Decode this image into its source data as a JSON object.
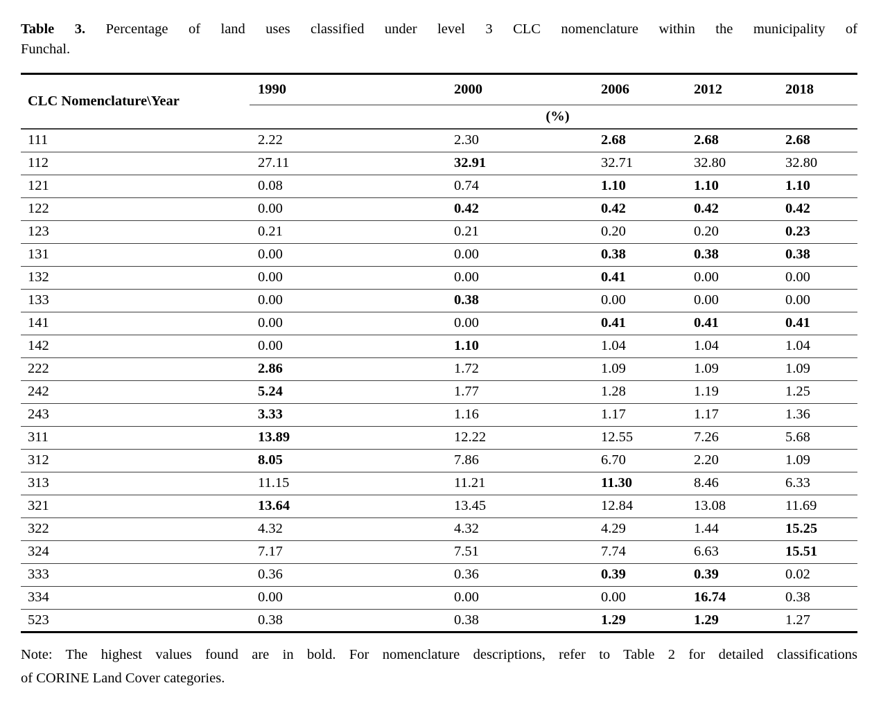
{
  "caption": {
    "label": "Table 3.",
    "line1_rest": "Percentage of land uses classified under level 3 CLC nomenclature within the municipality of",
    "line2": "Funchal."
  },
  "table": {
    "corner_header": "CLC Nomenclature\\Year",
    "years": [
      "1990",
      "2000",
      "2006",
      "2012",
      "2018"
    ],
    "unit_header": "(%)",
    "rows": [
      {
        "code": "111",
        "values": [
          "2.22",
          "2.30",
          "2.68",
          "2.68",
          "2.68"
        ],
        "bold": [
          false,
          false,
          true,
          true,
          true
        ]
      },
      {
        "code": "112",
        "values": [
          "27.11",
          "32.91",
          "32.71",
          "32.80",
          "32.80"
        ],
        "bold": [
          false,
          true,
          false,
          false,
          false
        ]
      },
      {
        "code": "121",
        "values": [
          "0.08",
          "0.74",
          "1.10",
          "1.10",
          "1.10"
        ],
        "bold": [
          false,
          false,
          true,
          true,
          true
        ]
      },
      {
        "code": "122",
        "values": [
          "0.00",
          "0.42",
          "0.42",
          "0.42",
          "0.42"
        ],
        "bold": [
          false,
          true,
          true,
          true,
          true
        ]
      },
      {
        "code": "123",
        "values": [
          "0.21",
          "0.21",
          "0.20",
          "0.20",
          "0.23"
        ],
        "bold": [
          false,
          false,
          false,
          false,
          true
        ]
      },
      {
        "code": "131",
        "values": [
          "0.00",
          "0.00",
          "0.38",
          "0.38",
          "0.38"
        ],
        "bold": [
          false,
          false,
          true,
          true,
          true
        ]
      },
      {
        "code": "132",
        "values": [
          "0.00",
          "0.00",
          "0.41",
          "0.00",
          "0.00"
        ],
        "bold": [
          false,
          false,
          true,
          false,
          false
        ]
      },
      {
        "code": "133",
        "values": [
          "0.00",
          "0.38",
          "0.00",
          "0.00",
          "0.00"
        ],
        "bold": [
          false,
          true,
          false,
          false,
          false
        ]
      },
      {
        "code": "141",
        "values": [
          "0.00",
          "0.00",
          "0.41",
          "0.41",
          "0.41"
        ],
        "bold": [
          false,
          false,
          true,
          true,
          true
        ]
      },
      {
        "code": "142",
        "values": [
          "0.00",
          "1.10",
          "1.04",
          "1.04",
          "1.04"
        ],
        "bold": [
          false,
          true,
          false,
          false,
          false
        ]
      },
      {
        "code": "222",
        "values": [
          "2.86",
          "1.72",
          "1.09",
          "1.09",
          "1.09"
        ],
        "bold": [
          true,
          false,
          false,
          false,
          false
        ]
      },
      {
        "code": "242",
        "values": [
          "5.24",
          "1.77",
          "1.28",
          "1.19",
          "1.25"
        ],
        "bold": [
          true,
          false,
          false,
          false,
          false
        ]
      },
      {
        "code": "243",
        "values": [
          "3.33",
          "1.16",
          "1.17",
          "1.17",
          "1.36"
        ],
        "bold": [
          true,
          false,
          false,
          false,
          false
        ]
      },
      {
        "code": "311",
        "values": [
          "13.89",
          "12.22",
          "12.55",
          "7.26",
          "5.68"
        ],
        "bold": [
          true,
          false,
          false,
          false,
          false
        ]
      },
      {
        "code": "312",
        "values": [
          "8.05",
          "7.86",
          "6.70",
          "2.20",
          "1.09"
        ],
        "bold": [
          true,
          false,
          false,
          false,
          false
        ]
      },
      {
        "code": "313",
        "values": [
          "11.15",
          "11.21",
          "11.30",
          "8.46",
          "6.33"
        ],
        "bold": [
          false,
          false,
          true,
          false,
          false
        ]
      },
      {
        "code": "321",
        "values": [
          "13.64",
          "13.45",
          "12.84",
          "13.08",
          "11.69"
        ],
        "bold": [
          true,
          false,
          false,
          false,
          false
        ]
      },
      {
        "code": "322",
        "values": [
          "4.32",
          "4.32",
          "4.29",
          "1.44",
          "15.25"
        ],
        "bold": [
          false,
          false,
          false,
          false,
          true
        ]
      },
      {
        "code": "324",
        "values": [
          "7.17",
          "7.51",
          "7.74",
          "6.63",
          "15.51"
        ],
        "bold": [
          false,
          false,
          false,
          false,
          true
        ]
      },
      {
        "code": "333",
        "values": [
          "0.36",
          "0.36",
          "0.39",
          "0.39",
          "0.02"
        ],
        "bold": [
          false,
          false,
          true,
          true,
          false
        ]
      },
      {
        "code": "334",
        "values": [
          "0.00",
          "0.00",
          "0.00",
          "16.74",
          "0.38"
        ],
        "bold": [
          false,
          false,
          false,
          true,
          false
        ]
      },
      {
        "code": "523",
        "values": [
          "0.38",
          "0.38",
          "1.29",
          "1.29",
          "1.27"
        ],
        "bold": [
          false,
          false,
          true,
          true,
          false
        ]
      }
    ]
  },
  "note": {
    "line1": "Note: The highest values found are in bold. For nomenclature descriptions, refer to Table 2 for detailed classifications",
    "line2": "of CORINE Land Cover categories."
  }
}
